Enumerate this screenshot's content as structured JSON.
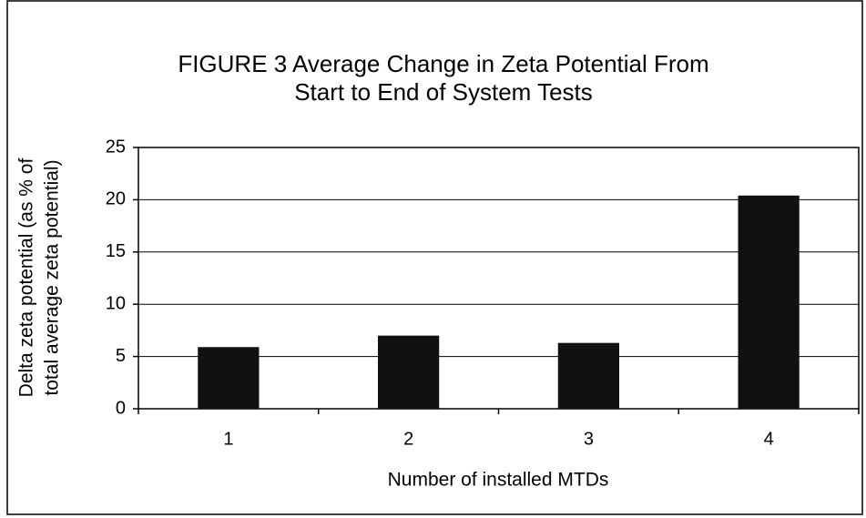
{
  "chart_data": {
    "type": "bar",
    "title": [
      "FIGURE 3  Average Change in Zeta Potential From",
      "Start to End of System Tests"
    ],
    "y_label": [
      "Delta zeta potential (as % of",
      "total average zeta potential)"
    ],
    "x_label": "Number of installed MTDs",
    "categories": [
      "1",
      "2",
      "3",
      "4"
    ],
    "values": [
      5.9,
      7.0,
      6.3,
      20.4
    ],
    "color": "#111111",
    "ylim": [
      0,
      25
    ],
    "yticks": [
      0,
      5,
      10,
      15,
      20,
      25
    ],
    "grid": true
  }
}
